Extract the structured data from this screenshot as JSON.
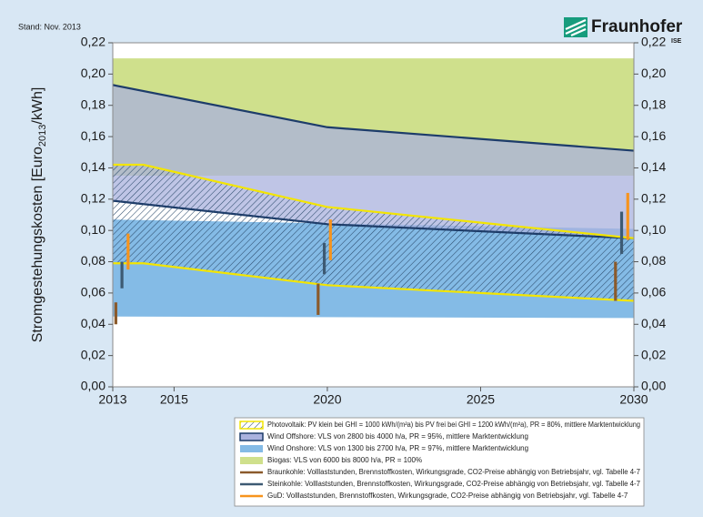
{
  "chart_data": {
    "type": "area",
    "note": "Stand: Nov. 2013",
    "ylabel": [
      "Stromgestehungskosten [Euro",
      "2013",
      "/kWh]"
    ],
    "xlim": [
      2013,
      2030
    ],
    "xticks": [
      2013,
      2015,
      2020,
      2025,
      2030
    ],
    "ylim": [
      0,
      0.22
    ],
    "yticks": [
      {
        "value": 0,
        "label": "0,00"
      },
      {
        "value": 0.02,
        "label": "0,02"
      },
      {
        "value": 0.04,
        "label": "0,04"
      },
      {
        "value": 0.06,
        "label": "0,06"
      },
      {
        "value": 0.08,
        "label": "0,08"
      },
      {
        "value": 0.1,
        "label": "0,10"
      },
      {
        "value": 0.12,
        "label": "0,12"
      },
      {
        "value": 0.14,
        "label": "0,14"
      },
      {
        "value": 0.16,
        "label": "0,16"
      },
      {
        "value": 0.18,
        "label": "0,18"
      },
      {
        "value": 0.2,
        "label": "0,20"
      },
      {
        "value": 0.22,
        "label": "0,22"
      }
    ],
    "bands": [
      {
        "name": "Photovoltaik: PV klein bei GHI = 1000 kWh/(m²a) bis PV frei bei GHI = 1200 kWh/(m²a), PR = 80%, mittlere Marktentwicklung",
        "color": "#2b4a6b",
        "hatch": true,
        "edge": "#f3e500",
        "x": [
          2013,
          2014,
          2020,
          2030
        ],
        "low": [
          0.079,
          0.079,
          0.065,
          0.055
        ],
        "high": [
          0.142,
          0.142,
          0.115,
          0.095
        ]
      },
      {
        "name": "Wind Offshore: VLS von 2800 bis 4000 h/a, PR = 95%, mittlere Marktentwicklung",
        "color": "#aab2de",
        "edge": "#1d3c6a",
        "x": [
          2013,
          2020,
          2030
        ],
        "low": [
          0.119,
          0.104,
          0.095
        ],
        "high": [
          0.193,
          0.166,
          0.151
        ]
      },
      {
        "name": "Wind Onshore: VLS von 1300 bis 2700 h/a, PR = 97%, mittlere Marktentwicklung",
        "color": "#84bbe6",
        "x": [
          2013,
          2030
        ],
        "low": [
          0.045,
          0.044
        ],
        "high": [
          0.107,
          0.101
        ]
      },
      {
        "name": "Biogas: VLS von 6000 bis 8000 h/a, PR = 100%",
        "color": "#cfe08c",
        "x": [
          2013,
          2030
        ],
        "low": [
          0.135,
          0.135
        ],
        "high": [
          0.21,
          0.21
        ]
      }
    ],
    "ranges": [
      {
        "name": "Braunkohle: Volllaststunden, Brennstoffkosten, Wirkungsgrade, CO2-Preise abhängig von Betriebsjahr, vgl. Tabelle 4-7",
        "color": "#8b5a2b",
        "x": [
          2013.1,
          2019.7,
          2029.4
        ],
        "low": [
          0.04,
          0.046,
          0.055
        ],
        "high": [
          0.054,
          0.066,
          0.08
        ]
      },
      {
        "name": "Steinkohle: Volllaststunden, Brennstoffkosten, Wirkungsgrade, CO2-Preise abhängig von Betriebsjahr, vgl. Tabelle 4-7",
        "color": "#3d5a73",
        "x": [
          2013.3,
          2019.9,
          2029.6
        ],
        "low": [
          0.063,
          0.072,
          0.085
        ],
        "high": [
          0.08,
          0.092,
          0.112
        ]
      },
      {
        "name": "GuD: Volllaststunden, Brennstoffkosten, Wirkungsgrade, CO2-Preise abhängig von Betriebsjahr, vgl. Tabelle 4-7",
        "color": "#f7941d",
        "x": [
          2013.5,
          2020.1,
          2029.8
        ],
        "low": [
          0.075,
          0.081,
          0.094
        ],
        "high": [
          0.098,
          0.107,
          0.124
        ]
      }
    ]
  },
  "logo": {
    "name": "Fraunhofer",
    "unit": "ISE"
  }
}
